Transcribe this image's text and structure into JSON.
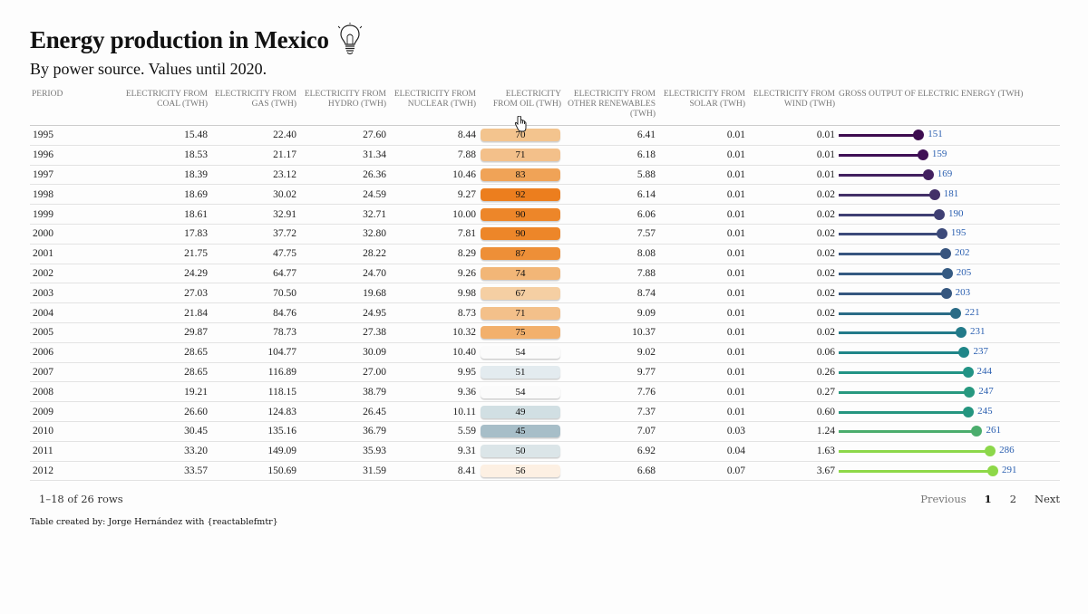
{
  "title": "Energy production in Mexico",
  "subtitle": "By power source. Values until 2020.",
  "columns": {
    "period": "PERIOD",
    "coal": "ELECTRICITY FROM COAL (TWH)",
    "gas": "ELECTRICITY FROM GAS (TWH)",
    "hydro": "ELECTRICITY FROM HYDRO (TWH)",
    "nuclear": "ELECTRICITY FROM NUCLEAR (TWH)",
    "oil": "ELECTRICITY FROM OIL (TWH)",
    "renew": "ELECTRICITY FROM OTHER RENEWABLES (TWH)",
    "solar": "ELECTRICITY FROM SOLAR (TWH)",
    "wind": "ELECTRICITY FROM WIND (TWH)",
    "gross": "GROSS OUTPUT OF ELECTRIC ENERGY (TWH)"
  },
  "rows": [
    {
      "period": "1995",
      "coal": "15.48",
      "gas": "22.40",
      "hydro": "27.60",
      "nuclear": "8.44",
      "oil": "70",
      "renew": "6.41",
      "solar": "0.01",
      "wind": "0.01",
      "gross": "151",
      "oil_color": "#f3c48e",
      "gross_color": "#3d0c4f"
    },
    {
      "period": "1996",
      "coal": "18.53",
      "gas": "21.17",
      "hydro": "31.34",
      "nuclear": "7.88",
      "oil": "71",
      "renew": "6.18",
      "solar": "0.01",
      "wind": "0.01",
      "gross": "159",
      "oil_color": "#f3c08a",
      "gross_color": "#3f0f55"
    },
    {
      "period": "1997",
      "coal": "18.39",
      "gas": "23.12",
      "hydro": "26.36",
      "nuclear": "10.46",
      "oil": "83",
      "renew": "5.88",
      "solar": "0.01",
      "wind": "0.01",
      "gross": "169",
      "oil_color": "#f0a357",
      "gross_color": "#42205f"
    },
    {
      "period": "1998",
      "coal": "18.69",
      "gas": "30.02",
      "hydro": "24.59",
      "nuclear": "9.27",
      "oil": "92",
      "renew": "6.14",
      "solar": "0.01",
      "wind": "0.02",
      "gross": "181",
      "oil_color": "#ec7e1e",
      "gross_color": "#433068"
    },
    {
      "period": "1999",
      "coal": "18.61",
      "gas": "32.91",
      "hydro": "32.71",
      "nuclear": "10.00",
      "oil": "90",
      "renew": "6.06",
      "solar": "0.01",
      "wind": "0.02",
      "gross": "190",
      "oil_color": "#ed8629",
      "gross_color": "#3f3f73"
    },
    {
      "period": "2000",
      "coal": "17.83",
      "gas": "37.72",
      "hydro": "32.80",
      "nuclear": "7.81",
      "oil": "90",
      "renew": "7.57",
      "solar": "0.01",
      "wind": "0.02",
      "gross": "195",
      "oil_color": "#ed8629",
      "gross_color": "#3c4a7a"
    },
    {
      "period": "2001",
      "coal": "21.75",
      "gas": "47.75",
      "hydro": "28.22",
      "nuclear": "8.29",
      "oil": "87",
      "renew": "8.08",
      "solar": "0.01",
      "wind": "0.02",
      "gross": "202",
      "oil_color": "#ee8f37",
      "gross_color": "#38557f"
    },
    {
      "period": "2002",
      "coal": "24.29",
      "gas": "64.77",
      "hydro": "24.70",
      "nuclear": "9.26",
      "oil": "74",
      "renew": "7.88",
      "solar": "0.01",
      "wind": "0.02",
      "gross": "205",
      "oil_color": "#f2b677",
      "gross_color": "#355a82"
    },
    {
      "period": "2003",
      "coal": "27.03",
      "gas": "70.50",
      "hydro": "19.68",
      "nuclear": "9.98",
      "oil": "67",
      "renew": "8.74",
      "solar": "0.01",
      "wind": "0.02",
      "gross": "203",
      "oil_color": "#f5cfa3",
      "gross_color": "#36577f"
    },
    {
      "period": "2004",
      "coal": "21.84",
      "gas": "84.76",
      "hydro": "24.95",
      "nuclear": "8.73",
      "oil": "71",
      "renew": "9.09",
      "solar": "0.01",
      "wind": "0.02",
      "gross": "221",
      "oil_color": "#f3c08a",
      "gross_color": "#2a6b86"
    },
    {
      "period": "2005",
      "coal": "29.87",
      "gas": "78.73",
      "hydro": "27.38",
      "nuclear": "10.32",
      "oil": "75",
      "renew": "10.37",
      "solar": "0.01",
      "wind": "0.02",
      "gross": "231",
      "oil_color": "#f2b06c",
      "gross_color": "#227a89"
    },
    {
      "period": "2006",
      "coal": "28.65",
      "gas": "104.77",
      "hydro": "30.09",
      "nuclear": "10.40",
      "oil": "54",
      "renew": "9.02",
      "solar": "0.01",
      "wind": "0.06",
      "gross": "237",
      "oil_color": "#fbfbfb",
      "gross_color": "#1f8688"
    },
    {
      "period": "2007",
      "coal": "28.65",
      "gas": "116.89",
      "hydro": "27.00",
      "nuclear": "9.95",
      "oil": "51",
      "renew": "9.77",
      "solar": "0.01",
      "wind": "0.26",
      "gross": "244",
      "oil_color": "#e3ebef",
      "gross_color": "#229385"
    },
    {
      "period": "2008",
      "coal": "19.21",
      "gas": "118.15",
      "hydro": "38.79",
      "nuclear": "9.36",
      "oil": "54",
      "renew": "7.76",
      "solar": "0.01",
      "wind": "0.27",
      "gross": "247",
      "oil_color": "#fbfbfb",
      "gross_color": "#27987f"
    },
    {
      "period": "2009",
      "coal": "26.60",
      "gas": "124.83",
      "hydro": "26.45",
      "nuclear": "10.11",
      "oil": "49",
      "renew": "7.37",
      "solar": "0.01",
      "wind": "0.60",
      "gross": "245",
      "oil_color": "#d1dfe3",
      "gross_color": "#24957f"
    },
    {
      "period": "2010",
      "coal": "30.45",
      "gas": "135.16",
      "hydro": "36.79",
      "nuclear": "5.59",
      "oil": "45",
      "renew": "7.07",
      "solar": "0.03",
      "wind": "1.24",
      "gross": "261",
      "oil_color": "#a7bec8",
      "gross_color": "#4bad6d"
    },
    {
      "period": "2011",
      "coal": "33.20",
      "gas": "149.09",
      "hydro": "35.93",
      "nuclear": "9.31",
      "oil": "50",
      "renew": "6.92",
      "solar": "0.04",
      "wind": "1.63",
      "gross": "286",
      "oil_color": "#dbe5e8",
      "gross_color": "#8cd74a"
    },
    {
      "period": "2012",
      "coal": "33.57",
      "gas": "150.69",
      "hydro": "31.59",
      "nuclear": "8.41",
      "oil": "56",
      "renew": "6.68",
      "solar": "0.07",
      "wind": "3.67",
      "gross": "291",
      "oil_color": "#fdf0e3",
      "gross_color": "#8ed848"
    }
  ],
  "gross_scale_max": 291,
  "pagination": {
    "rows_info": "1–18 of 26 rows",
    "previous": "Previous",
    "page1": "1",
    "page2": "2",
    "next": "Next"
  },
  "credit": "Table created by: Jorge Hernández with {reactablefmtr}",
  "icons": {
    "title_icon": "lightbulb-icon",
    "cursor": "hand-pointer-icon"
  }
}
